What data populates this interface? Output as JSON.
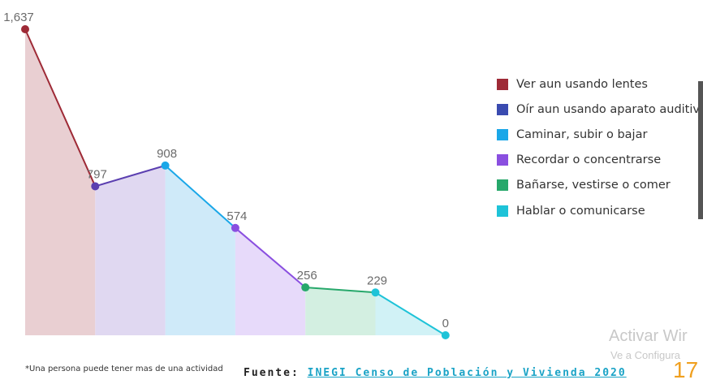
{
  "chart_data": {
    "type": "area",
    "categories": [
      "Ver aun usando lentes",
      "Oír aun usando aparato auditivo",
      "Caminar, subir o bajar",
      "Recordar o concentrarse",
      "Bañarse, vestirse o comer",
      "Hablar o comunicarse",
      ""
    ],
    "values": [
      1637,
      797,
      908,
      574,
      256,
      229,
      0
    ],
    "value_labels": [
      "1,637",
      "797",
      "908",
      "574",
      "256",
      "229",
      "0"
    ],
    "ylim": [
      0,
      1637
    ],
    "grid": false,
    "legend_position": "right",
    "series": [
      {
        "name": "Ver aun usando lentes",
        "color": "#9e2a36",
        "fill": "#e9cfd2"
      },
      {
        "name": "Oír aun usando aparato auditivo",
        "color": "#5b3fb0",
        "fill": "#e0d8f1"
      },
      {
        "name": "Caminar, subir o bajar",
        "color": "#1aa7e8",
        "fill": "#cfeaf9"
      },
      {
        "name": "Recordar o concentrarse",
        "color": "#8a4fe0",
        "fill": "#e7dafa"
      },
      {
        "name": "Bañarse, vestirse o comer",
        "color": "#27a86b",
        "fill": "#d3efe1"
      },
      {
        "name": "Hablar o comunicarse",
        "color": "#1ec3d8",
        "fill": "#d1f2f6"
      }
    ],
    "legend_colors": [
      "#9e2a36",
      "#3a4bb0",
      "#1aa7e8",
      "#8a4fe0",
      "#27a86b",
      "#1ec3d8"
    ]
  },
  "footnote": "*Una persona puede tener mas de una actividad",
  "source_prefix": "Fuente:",
  "source_link": "INEGI Censo de Población y Vivienda 2020",
  "page_number": "17",
  "watermark_line1": "Activar Wir",
  "watermark_line2": "Ve a Configura"
}
